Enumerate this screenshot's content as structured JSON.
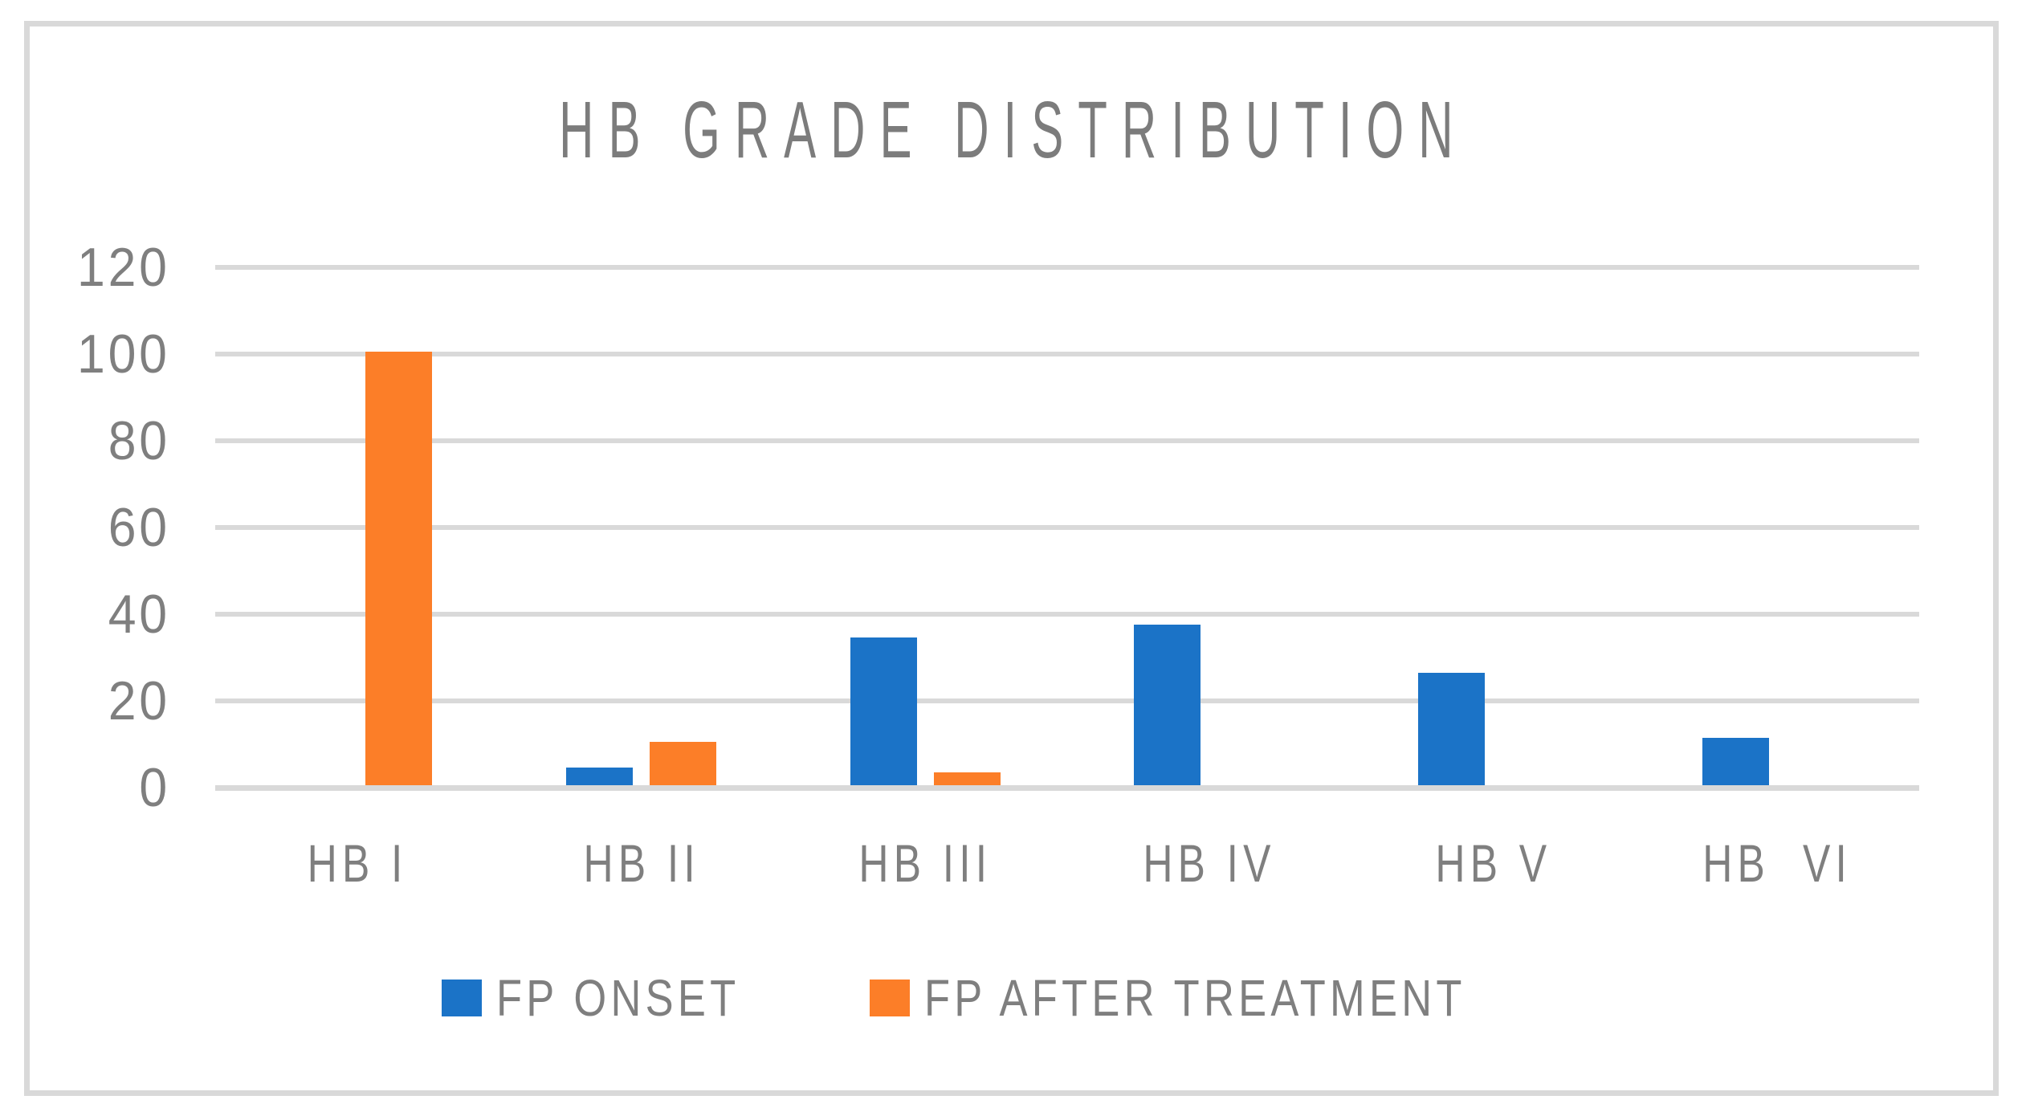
{
  "chart_data": {
    "type": "bar",
    "title": "HB GRADE DISTRIBUTION",
    "categories": [
      "HB I",
      "HB II",
      "HB III",
      "HB IV",
      "HB V",
      "HB  VI"
    ],
    "series": [
      {
        "name": "FP ONSET",
        "color": "#1B73C7",
        "values": [
          0,
          4,
          34,
          37,
          26,
          11
        ]
      },
      {
        "name": "FP AFTER TREATMENT",
        "color": "#FC7E28",
        "values": [
          100,
          10,
          3,
          0,
          0,
          0
        ]
      }
    ],
    "xlabel": "",
    "ylabel": "",
    "ylim": [
      0,
      120
    ],
    "yticks": [
      0,
      20,
      40,
      60,
      80,
      100,
      120
    ],
    "grid": true,
    "legend_position": "bottom",
    "colors": {
      "gridline": "#D9D9D9",
      "axis_line": "#D9D9D9",
      "frame_border": "#D9D9D9",
      "text": "#7C7C7C",
      "background": "#FFFFFF"
    }
  }
}
